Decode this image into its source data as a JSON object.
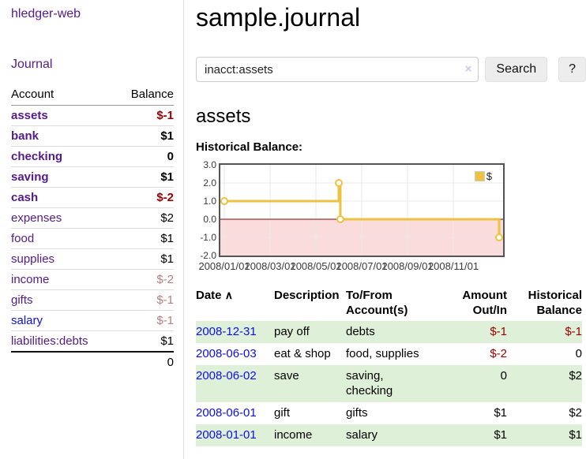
{
  "app": {
    "brand": "hledger-web"
  },
  "sidebar": {
    "journal_label": "Journal",
    "accounts_table": {
      "account_header": "Account",
      "balance_header": "Balance",
      "rows": [
        {
          "name": "assets",
          "depth": 0,
          "bold": true,
          "blue": false,
          "balance": "$-1"
        },
        {
          "name": "bank",
          "depth": 1,
          "bold": true,
          "blue": false,
          "balance": "$1"
        },
        {
          "name": "checking",
          "depth": 2,
          "bold": true,
          "blue": false,
          "balance": "0"
        },
        {
          "name": "saving",
          "depth": 2,
          "bold": true,
          "blue": false,
          "balance": "$1"
        },
        {
          "name": "cash",
          "depth": 1,
          "bold": true,
          "blue": false,
          "balance": "$-2"
        },
        {
          "name": "expenses",
          "depth": 0,
          "bold": false,
          "blue": false,
          "balance": "$2"
        },
        {
          "name": "food",
          "depth": 1,
          "bold": false,
          "blue": false,
          "balance": "$1"
        },
        {
          "name": "supplies",
          "depth": 1,
          "bold": false,
          "blue": false,
          "balance": "$1"
        },
        {
          "name": "income",
          "depth": 0,
          "bold": false,
          "blue": false,
          "balance": "$-2"
        },
        {
          "name": "gifts",
          "depth": 1,
          "bold": false,
          "blue": false,
          "balance": "$-1"
        },
        {
          "name": "salary",
          "depth": 1,
          "bold": false,
          "blue": true,
          "balance": "$-1"
        },
        {
          "name": "liabilities:debts",
          "depth": 0,
          "bold": false,
          "blue": false,
          "balance": "$1"
        }
      ],
      "total": "0"
    }
  },
  "main": {
    "title": "sample.journal",
    "search": {
      "value": "inacct:assets",
      "clear_icon": "×",
      "button_label": "Search",
      "help_label": "?"
    },
    "account_heading": "assets",
    "chart_heading": "Historical Balance:"
  },
  "chart_data": {
    "type": "line",
    "step": true,
    "title": "Historical Balance",
    "series": [
      {
        "name": "$",
        "points": [
          [
            "2008-01-01",
            1
          ],
          [
            "2008-06-01",
            2
          ],
          [
            "2008-06-03",
            0
          ],
          [
            "2008-12-31",
            -1
          ]
        ]
      }
    ],
    "ylim": [
      -2,
      3
    ],
    "y_ticks": [
      "3.0",
      "2.0",
      "1.0",
      "0.0",
      "-1.0",
      "-2.0"
    ],
    "x_ticks": [
      "2008/01/01",
      "2008/03/01",
      "2008/05/01",
      "2008/07/01",
      "2008/09/01",
      "2008/11/01"
    ],
    "legend": {
      "label": "$",
      "position": "top-right"
    },
    "grid": true,
    "line_color": "#edc240",
    "marker_fill": "#ffffff",
    "negative_region_fill": "#fbdcdc",
    "zero_line_color": "#8b0000",
    "grid_color": "#e8e8e8",
    "border_color": "#545454"
  },
  "register_table": {
    "sort_icon": "∧",
    "headers": {
      "date": "Date",
      "description": "Description",
      "accounts": "To/From Account(s)",
      "amount": "Amount Out/In",
      "balance": "Historical Balance"
    },
    "rows": [
      {
        "date": "2008-12-31",
        "description": "pay off",
        "accounts": "debts",
        "amount": "$-1",
        "balance": "$-1"
      },
      {
        "date": "2008-06-03",
        "description": "eat & shop",
        "accounts": "food, supplies",
        "amount": "$-2",
        "balance": "0"
      },
      {
        "date": "2008-06-02",
        "description": "save",
        "accounts": "saving, checking",
        "amount": "0",
        "balance": "$2"
      },
      {
        "date": "2008-06-01",
        "description": "gift",
        "accounts": "gifts",
        "amount": "$1",
        "balance": "$2"
      },
      {
        "date": "2008-01-01",
        "description": "income",
        "accounts": "salary",
        "amount": "$1",
        "balance": "$1"
      }
    ]
  },
  "colors": {
    "link_purple": "#551a8b",
    "link_blue": "#0e0ee6",
    "negative_strong": "#a10000",
    "negative_muted": "#b97f7f",
    "row_stripe_green": "#dff0d8",
    "chart_gold": "#edc240",
    "chart_negative_pink": "#fbdcdc",
    "zero_line_red": "#8b0000"
  }
}
